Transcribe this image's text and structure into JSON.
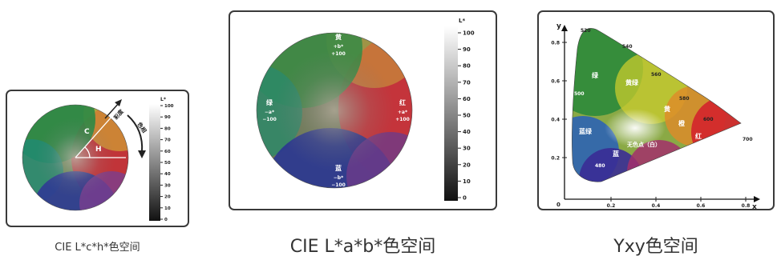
{
  "panel_lch": {
    "caption": "CIE L*c*h*色空间",
    "scale_label": "L*",
    "ticks": [
      "100",
      "90",
      "80",
      "70",
      "60",
      "50",
      "40",
      "30",
      "20",
      "10",
      "0"
    ],
    "chroma_label": "C",
    "hue_angle_label": "H",
    "arrow_saturation": "彩度",
    "arrow_hue": "色相"
  },
  "panel_lab": {
    "caption": "CIE L*a*b*色空间",
    "scale_label": "L*",
    "ticks": [
      "100",
      "90",
      "80",
      "70",
      "60",
      "50",
      "40",
      "30",
      "20",
      "10",
      "0"
    ],
    "top": {
      "name": "黄",
      "sym": "+b*",
      "val": "+100"
    },
    "bottom": {
      "name": "蓝",
      "sym": "−b*",
      "val": "−100"
    },
    "left": {
      "name": "绿",
      "sym": "−a*",
      "val": "−100"
    },
    "right": {
      "name": "红",
      "sym": "+a*",
      "val": "+100"
    }
  },
  "panel_yxy": {
    "caption": "Yxy色空间",
    "y_axis_label": "y",
    "x_axis_label": "x",
    "origin": "0",
    "y_ticks": [
      "0.8",
      "0.6",
      "0.4",
      "0.2"
    ],
    "x_ticks": [
      "0.2",
      "0.4",
      "0.6",
      "0.8"
    ],
    "wavelengths": [
      "520",
      "540",
      "560",
      "580",
      "600",
      "700",
      "500",
      "480",
      "400"
    ],
    "regions": {
      "green": "绿",
      "yellow_green": "黄绿",
      "yellow": "黄",
      "orange": "橙",
      "red": "红",
      "blue_green": "蓝绿",
      "blue": "蓝",
      "purple": "紫",
      "white_point": "无色点（白）"
    }
  }
}
